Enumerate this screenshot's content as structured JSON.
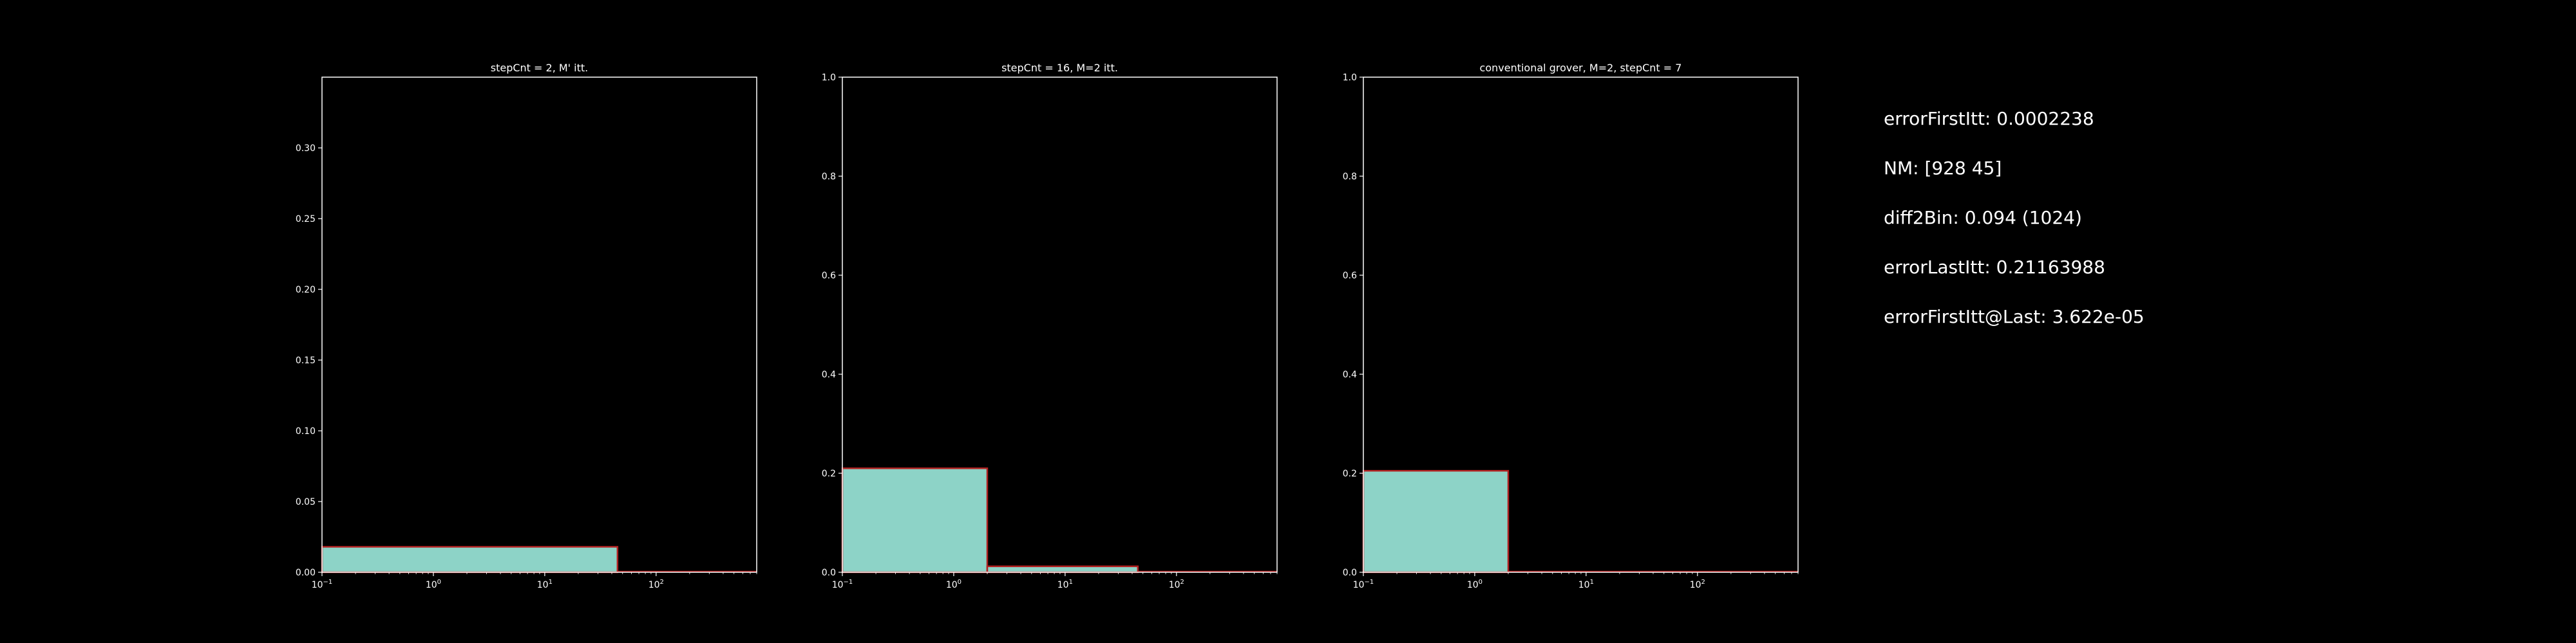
{
  "stats": [
    "errorFirstItt: 0.0002238",
    "NM: [928  45]",
    "diff2Bin: 0.094 (1024)",
    "errorLastItt: 0.21163988",
    "errorFirstItt@Last: 3.622e-05"
  ],
  "colors": {
    "background": "#000000",
    "bar_fill": "#8dd3c7",
    "bar_edge": "#b22222",
    "axis": "#ffffff",
    "text": "#ffffff"
  },
  "chart_data": [
    {
      "type": "bar",
      "title": "stepCnt = 2, M' itt.",
      "xscale": "log",
      "xlim": [
        0.1,
        800
      ],
      "ylim": [
        0,
        0.35
      ],
      "xticks": [
        {
          "value": 0.1,
          "base": "10",
          "exp": "−1"
        },
        {
          "value": 1,
          "base": "10",
          "exp": "0"
        },
        {
          "value": 10,
          "base": "10",
          "exp": "1"
        },
        {
          "value": 100,
          "base": "10",
          "exp": "2"
        }
      ],
      "yticks": [
        "0.00",
        "0.05",
        "0.10",
        "0.15",
        "0.20",
        "0.25",
        "0.30"
      ],
      "bins": [
        {
          "x0": 0.1,
          "x1": 45,
          "value": 0.018
        },
        {
          "x0": 45,
          "x1": 800,
          "value": 0.0
        }
      ],
      "grid": false
    },
    {
      "type": "bar",
      "title": "stepCnt = 16, M=2 itt.",
      "xscale": "log",
      "xlim": [
        0.1,
        800
      ],
      "ylim": [
        0,
        1.0
      ],
      "xticks": [
        {
          "value": 0.1,
          "base": "10",
          "exp": "−1"
        },
        {
          "value": 1,
          "base": "10",
          "exp": "0"
        },
        {
          "value": 10,
          "base": "10",
          "exp": "1"
        },
        {
          "value": 100,
          "base": "10",
          "exp": "2"
        }
      ],
      "yticks": [
        "0.0",
        "0.2",
        "0.4",
        "0.6",
        "0.8",
        "1.0"
      ],
      "bins": [
        {
          "x0": 0.1,
          "x1": 2,
          "value": 0.21
        },
        {
          "x0": 2,
          "x1": 45,
          "value": 0.012
        },
        {
          "x0": 45,
          "x1": 800,
          "value": 0.0
        }
      ],
      "grid": false
    },
    {
      "type": "bar",
      "title": "conventional grover, M=2, stepCnt = 7",
      "xscale": "log",
      "xlim": [
        0.1,
        800
      ],
      "ylim": [
        0,
        1.0
      ],
      "xticks": [
        {
          "value": 0.1,
          "base": "10",
          "exp": "−1"
        },
        {
          "value": 1,
          "base": "10",
          "exp": "0"
        },
        {
          "value": 10,
          "base": "10",
          "exp": "1"
        },
        {
          "value": 100,
          "base": "10",
          "exp": "2"
        }
      ],
      "yticks": [
        "0.0",
        "0.2",
        "0.4",
        "0.6",
        "0.8",
        "1.0"
      ],
      "bins": [
        {
          "x0": 0.1,
          "x1": 2,
          "value": 0.205
        },
        {
          "x0": 2,
          "x1": 800,
          "value": 0.0
        }
      ],
      "grid": false
    }
  ]
}
